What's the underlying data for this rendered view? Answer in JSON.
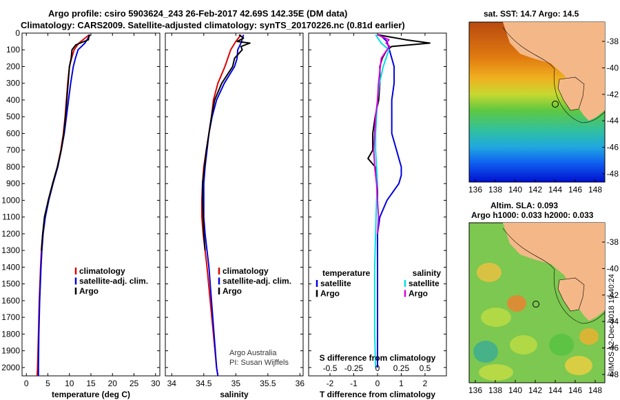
{
  "header": {
    "line1": "Argo profile: csiro 5903624_243 26-Feb-2017 42.69S 142.35E (DM data)",
    "line2": "Climatology: CARS2009. Satellite-adjusted climatology: synTS_20170226.nc (0.81d earlier)"
  },
  "maps": {
    "sst_title": "sat. SST: 14.7 Argo: 14.5",
    "sla_title1": "Altim. SLA: 0.093",
    "sla_title2": "Argo h1000: 0.033 h2000: 0.033",
    "lat_ticks": [
      "-38",
      "-40",
      "-42",
      "-44",
      "-46",
      "-48"
    ],
    "lon_ticks": [
      "136",
      "138",
      "140",
      "142",
      "144",
      "146",
      "148"
    ],
    "imos_stamp": "©IMOS 12-Dec-2018 19:40:24"
  },
  "credit": {
    "line1": "Argo Australia",
    "line2": "PI: Susan Wijffels"
  },
  "colors": {
    "climatology": "#dd0000",
    "satellite": "#0000dd",
    "argo": "#000000",
    "sal_satellite": "#00e0e0",
    "sal_argo": "#dd00dd"
  },
  "chart_data": [
    {
      "type": "line",
      "xlabel": "temperature (deg C)",
      "ylabel": "",
      "xlim": [
        -1,
        31
      ],
      "ylim": [
        2050,
        0
      ],
      "xticks": [
        "0",
        "5",
        "10",
        "15",
        "20",
        "25",
        "30"
      ],
      "yticks": [
        "0",
        "100",
        "200",
        "300",
        "400",
        "500",
        "600",
        "700",
        "800",
        "900",
        "1000",
        "1100",
        "1200",
        "1300",
        "1400",
        "1500",
        "1600",
        "1700",
        "1800",
        "1900",
        "2000"
      ],
      "legend": [
        "climatology",
        "satellite-adj. clim.",
        "Argo"
      ],
      "series": [
        {
          "name": "climatology",
          "color": "#dd0000",
          "depth": [
            10,
            60,
            100,
            150,
            200,
            300,
            400,
            500,
            600,
            700,
            800,
            900,
            1000,
            1100,
            1200,
            1300,
            1400,
            1600,
            1800,
            2000,
            2050
          ],
          "values": [
            14.6,
            12.2,
            11.1,
            10.5,
            10.0,
            9.6,
            9.3,
            9.0,
            8.6,
            8.0,
            7.2,
            6.1,
            5.1,
            4.3,
            3.8,
            3.5,
            3.3,
            3.0,
            2.8,
            2.6,
            2.5
          ]
        },
        {
          "name": "satellite-adj. clim.",
          "color": "#0000dd",
          "depth": [
            10,
            60,
            100,
            150,
            200,
            300,
            400,
            500,
            600,
            700,
            800,
            900,
            1000,
            1100,
            1200,
            1300,
            1400,
            1600,
            1800,
            2000,
            2050
          ],
          "values": [
            14.8,
            13.6,
            12.0,
            11.4,
            10.9,
            10.3,
            9.8,
            9.3,
            8.8,
            8.1,
            7.3,
            6.2,
            5.2,
            4.4,
            3.9,
            3.6,
            3.4,
            3.1,
            2.9,
            2.8,
            2.8
          ]
        },
        {
          "name": "Argo",
          "color": "#000000",
          "depth": [
            10,
            40,
            70,
            100,
            150,
            200,
            300,
            400,
            500,
            600,
            700,
            800,
            900,
            1000,
            1100,
            1200,
            1300
          ],
          "values": [
            14.6,
            14.4,
            11.5,
            10.6,
            10.4,
            10.0,
            9.7,
            9.4,
            9.1,
            8.7,
            8.1,
            7.2,
            6.1,
            5.1,
            4.2,
            3.8,
            3.5
          ]
        }
      ]
    },
    {
      "type": "line",
      "xlabel": "salinity",
      "xlim": [
        33.9,
        36.05
      ],
      "ylim": [
        2050,
        0
      ],
      "xticks": [
        "34",
        "34.5",
        "35",
        "35.5",
        "36"
      ],
      "legend": [
        "climatology",
        "satellite-adj. clim.",
        "Argo"
      ],
      "series": [
        {
          "name": "climatology",
          "color": "#dd0000",
          "depth": [
            10,
            50,
            100,
            200,
            300,
            400,
            500,
            600,
            700,
            800,
            900,
            1000,
            1100,
            1200,
            1300,
            1400,
            1600,
            1800,
            2000,
            2050
          ],
          "values": [
            35.08,
            35.0,
            34.92,
            34.83,
            34.72,
            34.65,
            34.62,
            34.58,
            34.54,
            34.5,
            34.48,
            34.47,
            34.47,
            34.49,
            34.52,
            34.55,
            34.6,
            34.65,
            34.7,
            34.72
          ]
        },
        {
          "name": "satellite-adj. clim.",
          "color": "#0000dd",
          "depth": [
            10,
            60,
            100,
            150,
            200,
            300,
            400,
            500,
            600,
            700,
            800,
            900,
            1000,
            1100,
            1200,
            1300,
            1400,
            1600,
            1800,
            2000,
            2050
          ],
          "values": [
            35.12,
            35.08,
            35.03,
            35.02,
            34.98,
            34.82,
            34.7,
            34.63,
            34.58,
            34.55,
            34.52,
            34.5,
            34.5,
            34.5,
            34.52,
            34.55,
            34.58,
            34.62,
            34.66,
            34.7,
            34.72
          ]
        },
        {
          "name": "Argo",
          "color": "#000000",
          "depth": [
            10,
            30,
            50,
            60,
            80,
            100,
            150,
            200,
            300,
            400,
            500,
            600,
            700,
            800,
            900,
            1000,
            1100,
            1200,
            1300
          ],
          "values": [
            35.05,
            35.12,
            35.02,
            35.22,
            35.08,
            35.1,
            34.98,
            34.95,
            34.78,
            34.67,
            34.62,
            34.58,
            34.54,
            34.51,
            34.48,
            34.48,
            34.49,
            34.5,
            34.52
          ]
        }
      ]
    },
    {
      "type": "line",
      "xlabel": "T difference from climatology",
      "xlabel_top": "S difference from climatology",
      "xlim": [
        -2.9,
        2.9
      ],
      "ylim": [
        2050,
        0
      ],
      "xticks": [
        "-2",
        "-1",
        "0",
        "1",
        "2"
      ],
      "xticks_top": [
        "-0.5",
        "-0.25",
        "0",
        "0.25",
        "0.5"
      ],
      "legend_left_title": "temperature",
      "legend_right_title": "salinity",
      "legend_left": [
        "satellite",
        "Argo"
      ],
      "legend_right": [
        "satellite",
        "Argo"
      ],
      "series": [
        {
          "name": "T satellite",
          "color": "#0000dd",
          "depth": [
            10,
            50,
            100,
            200,
            300,
            400,
            500,
            600,
            700,
            750,
            800,
            850,
            900,
            1000,
            1100,
            1200,
            1300,
            1400,
            1600,
            1800,
            2000
          ],
          "values": [
            0.1,
            0.4,
            0.5,
            0.7,
            0.7,
            0.6,
            0.6,
            0.6,
            0.8,
            0.9,
            1.0,
            1.0,
            0.9,
            0.4,
            0.1,
            0.0,
            0.0,
            0.0,
            0.0,
            0.0,
            0.0
          ]
        },
        {
          "name": "T Argo",
          "color": "#000000",
          "depth": [
            10,
            40,
            60,
            80,
            100,
            150,
            200,
            300,
            400,
            500,
            600,
            700,
            750,
            800,
            900,
            1000
          ],
          "values": [
            0.0,
            1.2,
            2.2,
            0.6,
            0.4,
            0.2,
            0.1,
            0.1,
            0.05,
            -0.1,
            -0.2,
            -0.2,
            -0.4,
            -0.1,
            0.0,
            0.0
          ]
        },
        {
          "name": "S satellite",
          "color": "#00e0e0",
          "depth": [
            10,
            60,
            100,
            200,
            300,
            400,
            500,
            600,
            700,
            800,
            900,
            1000,
            1200,
            1400,
            1600,
            1800,
            2000
          ],
          "values": [
            -0.02,
            0.04,
            0.12,
            0.06,
            0.02,
            0.0,
            -0.01,
            -0.02,
            -0.02,
            -0.01,
            0.0,
            -0.01,
            -0.02,
            -0.03,
            -0.03,
            -0.03,
            -0.02
          ]
        },
        {
          "name": "S Argo",
          "color": "#dd00dd",
          "depth": [
            10,
            40,
            60,
            80,
            100,
            150,
            200,
            300,
            400,
            500,
            600,
            700,
            800,
            900,
            1000,
            1100,
            1200
          ],
          "values": [
            0.0,
            0.12,
            0.09,
            0.13,
            0.1,
            0.04,
            0.03,
            0.01,
            0.0,
            -0.02,
            -0.03,
            -0.04,
            -0.03,
            -0.01,
            0.0,
            0.01,
            0.0
          ]
        }
      ]
    }
  ]
}
